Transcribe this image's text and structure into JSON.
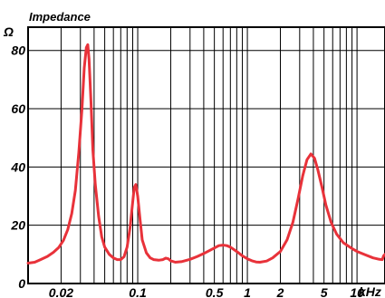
{
  "chart_data": {
    "type": "line",
    "title": "Impedance",
    "y_unit": "Ω",
    "x_unit": "kHz",
    "x_scale": "log",
    "xlim": [
      0.01,
      18
    ],
    "ylim": [
      0,
      88
    ],
    "grid": true,
    "y_ticks": [
      {
        "value": 0,
        "label": "0"
      },
      {
        "value": 20,
        "label": "20"
      },
      {
        "value": 40,
        "label": "40"
      },
      {
        "value": 60,
        "label": "60"
      },
      {
        "value": 80,
        "label": "80"
      }
    ],
    "x_tick_labels": [
      {
        "value": 0.02,
        "label": "0.02"
      },
      {
        "value": 0.1,
        "label": "0.1"
      },
      {
        "value": 0.5,
        "label": "0.5"
      },
      {
        "value": 1,
        "label": "1"
      },
      {
        "value": 2,
        "label": "2"
      },
      {
        "value": 5,
        "label": "5"
      },
      {
        "value": 10,
        "label": "10"
      }
    ],
    "x_gridlines": [
      0.01,
      0.02,
      0.03,
      0.04,
      0.05,
      0.06,
      0.07,
      0.08,
      0.09,
      0.1,
      0.2,
      0.3,
      0.4,
      0.5,
      0.6,
      0.7,
      0.8,
      0.9,
      1,
      2,
      3,
      4,
      5,
      6,
      7,
      8,
      9,
      10,
      20
    ],
    "series": [
      {
        "color": "#e8323a",
        "points": [
          [
            0.01,
            7
          ],
          [
            0.0115,
            7.3
          ],
          [
            0.013,
            8.2
          ],
          [
            0.015,
            9.3
          ],
          [
            0.017,
            10.7
          ],
          [
            0.019,
            12.3
          ],
          [
            0.021,
            14.8
          ],
          [
            0.023,
            18.5
          ],
          [
            0.025,
            24
          ],
          [
            0.027,
            32
          ],
          [
            0.029,
            45
          ],
          [
            0.031,
            60
          ],
          [
            0.0325,
            74
          ],
          [
            0.034,
            81
          ],
          [
            0.035,
            82
          ],
          [
            0.036,
            77
          ],
          [
            0.0375,
            62
          ],
          [
            0.039,
            46
          ],
          [
            0.041,
            34
          ],
          [
            0.044,
            23
          ],
          [
            0.047,
            16
          ],
          [
            0.05,
            12.5
          ],
          [
            0.055,
            10
          ],
          [
            0.06,
            8.8
          ],
          [
            0.065,
            8.2
          ],
          [
            0.07,
            8.2
          ],
          [
            0.075,
            9.2
          ],
          [
            0.08,
            12.5
          ],
          [
            0.085,
            19
          ],
          [
            0.09,
            28
          ],
          [
            0.093,
            33
          ],
          [
            0.096,
            34
          ],
          [
            0.1,
            30
          ],
          [
            0.105,
            22
          ],
          [
            0.11,
            15
          ],
          [
            0.12,
            10.5
          ],
          [
            0.13,
            8.8
          ],
          [
            0.14,
            8.2
          ],
          [
            0.155,
            8
          ],
          [
            0.17,
            8.2
          ],
          [
            0.18,
            8.7
          ],
          [
            0.19,
            8.5
          ],
          [
            0.2,
            7.8
          ],
          [
            0.22,
            7.3
          ],
          [
            0.25,
            7.5
          ],
          [
            0.3,
            8.3
          ],
          [
            0.35,
            9.3
          ],
          [
            0.4,
            10.3
          ],
          [
            0.45,
            11.3
          ],
          [
            0.5,
            12.2
          ],
          [
            0.55,
            13
          ],
          [
            0.6,
            13.2
          ],
          [
            0.65,
            13
          ],
          [
            0.7,
            12.5
          ],
          [
            0.8,
            11
          ],
          [
            0.9,
            9.5
          ],
          [
            1,
            8.5
          ],
          [
            1.1,
            7.8
          ],
          [
            1.2,
            7.4
          ],
          [
            1.3,
            7.3
          ],
          [
            1.5,
            7.7
          ],
          [
            1.7,
            8.8
          ],
          [
            2,
            11
          ],
          [
            2.3,
            15
          ],
          [
            2.6,
            21
          ],
          [
            2.9,
            29
          ],
          [
            3.2,
            37
          ],
          [
            3.5,
            42.5
          ],
          [
            3.8,
            44.5
          ],
          [
            4.1,
            43
          ],
          [
            4.4,
            39
          ],
          [
            4.8,
            33
          ],
          [
            5.2,
            27
          ],
          [
            5.8,
            21
          ],
          [
            6.5,
            17
          ],
          [
            7.5,
            14
          ],
          [
            9,
            12
          ],
          [
            10,
            11
          ],
          [
            12,
            9.8
          ],
          [
            14,
            8.8
          ],
          [
            16,
            8.3
          ],
          [
            17,
            8.2
          ],
          [
            17.5,
            9.5
          ],
          [
            18,
            10
          ]
        ]
      }
    ]
  }
}
